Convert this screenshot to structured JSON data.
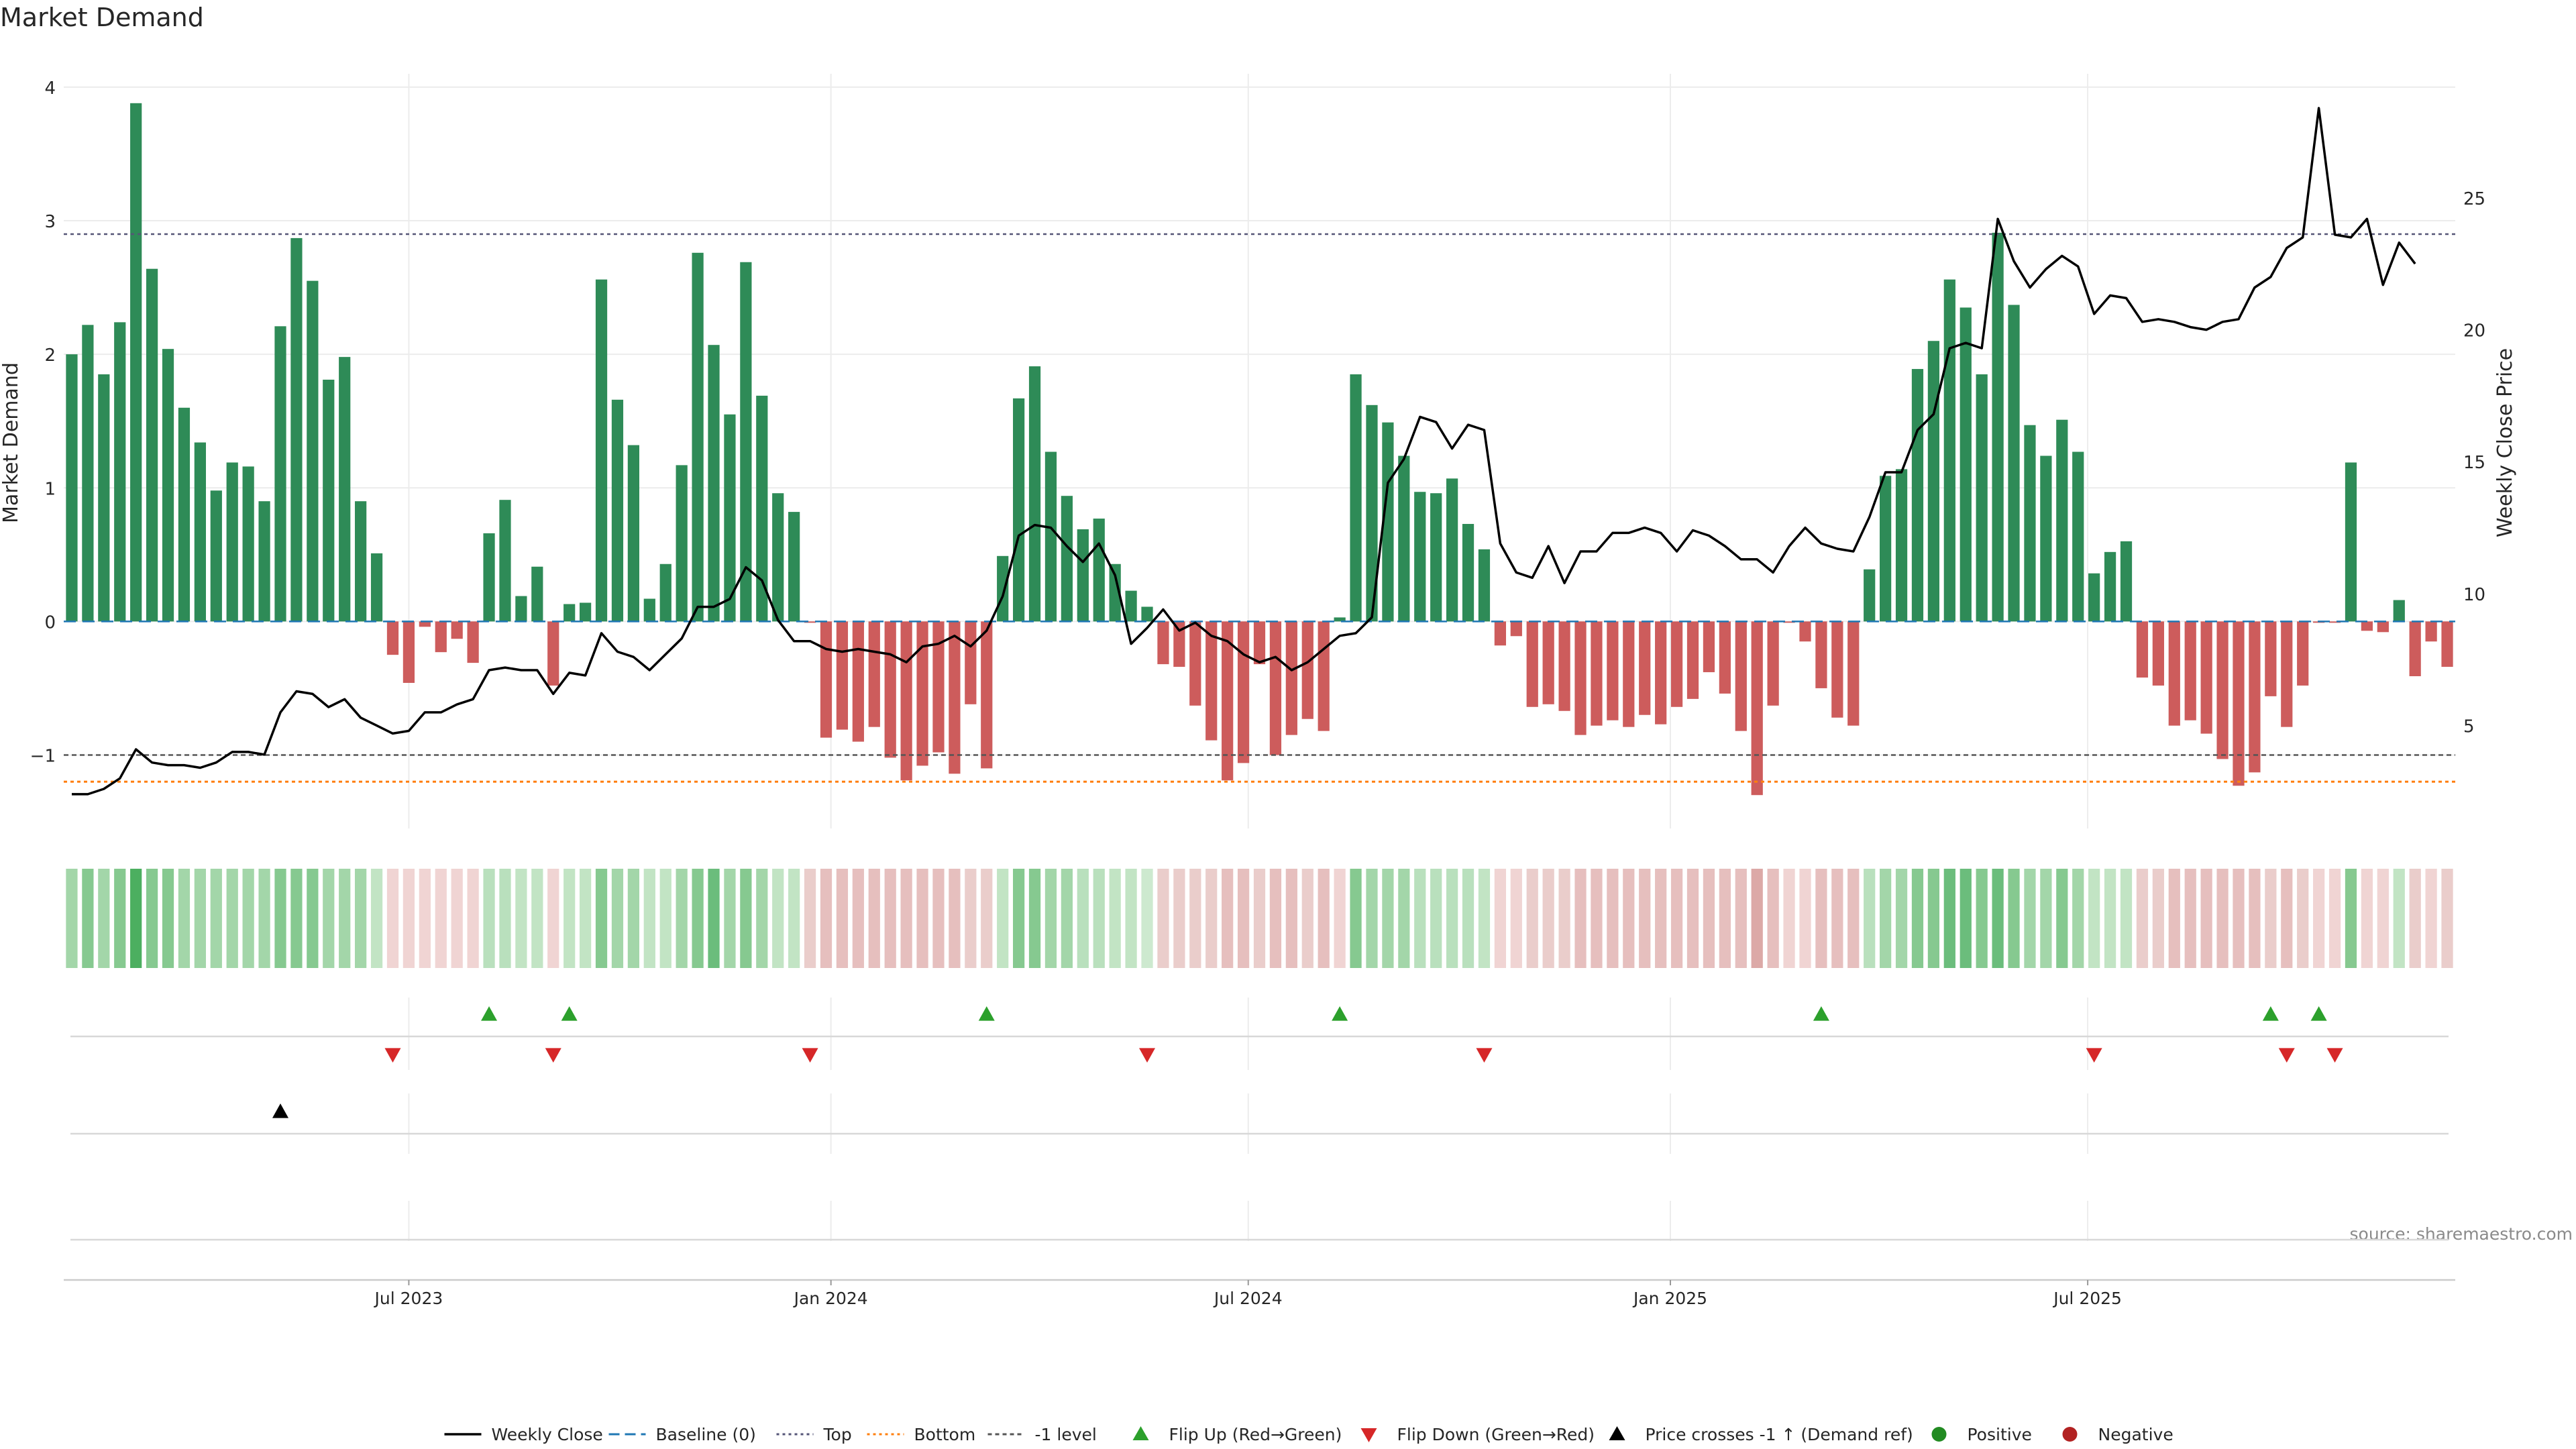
{
  "chart_data": {
    "type": "bar",
    "title": "Market Demand",
    "ylabel_left": "Market Demand",
    "ylabel_right": "Weekly Close Price",
    "ylim_left": [
      -1.55,
      4.1
    ],
    "ylim_right": [
      1.1,
      29.7
    ],
    "left_ticks": [
      -1,
      0,
      1,
      2,
      3,
      4
    ],
    "left_tick_labels": [
      "−1",
      "0",
      "1",
      "2",
      "3",
      "4"
    ],
    "right_ticks": [
      5,
      10,
      15,
      20,
      25
    ],
    "right_tick_labels": [
      "5",
      "10",
      "15",
      "20",
      "25"
    ],
    "x_tick_labels": [
      "Jul 2023",
      "Jan 2024",
      "Jul 2024",
      "Jan 2025",
      "Jul 2025"
    ],
    "x_tick_weeks": [
      21.5,
      47.8,
      73.8,
      100.1,
      126.1
    ],
    "levels": {
      "top": 2.9,
      "bottom": -1.2,
      "minus_one": -1
    },
    "grid": true,
    "legend_placement": "bottom-center",
    "source_note": "source: sharemaestro.com",
    "colors": {
      "positive_bar": "#2e8b57",
      "negative_bar": "#cd5c5c",
      "close_line": "#000000",
      "baseline": "#1f77b4",
      "top": "#555577",
      "bottom": "#ff7f0e",
      "minus_one": "#555555",
      "flip_up": "#2ca02c",
      "flip_down": "#d62728",
      "price_cross": "#000000",
      "positive_dot": "#228b22",
      "negative_dot": "#b22222"
    },
    "demand": [
      2.0,
      2.22,
      1.85,
      2.24,
      3.88,
      2.64,
      2.04,
      1.6,
      1.34,
      0.98,
      1.19,
      1.16,
      0.9,
      2.21,
      2.87,
      2.55,
      1.81,
      1.98,
      0.9,
      0.51,
      -0.25,
      -0.46,
      -0.04,
      -0.23,
      -0.13,
      -0.31,
      0.66,
      0.91,
      0.19,
      0.41,
      -0.48,
      0.13,
      0.14,
      2.56,
      1.66,
      1.32,
      0.17,
      0.43,
      1.17,
      2.76,
      2.07,
      1.55,
      2.69,
      1.69,
      0.96,
      0.82,
      -0.01,
      -0.87,
      -0.81,
      -0.9,
      -0.79,
      -1.02,
      -1.19,
      -1.08,
      -0.98,
      -1.14,
      -0.62,
      -1.1,
      0.49,
      1.67,
      1.91,
      1.27,
      0.94,
      0.69,
      0.77,
      0.43,
      0.23,
      0.11,
      -0.32,
      -0.34,
      -0.63,
      -0.89,
      -1.19,
      -1.06,
      -0.32,
      -1.0,
      -0.85,
      -0.73,
      -0.82,
      0.03,
      1.85,
      1.62,
      1.49,
      1.24,
      0.97,
      0.96,
      1.07,
      0.73,
      0.54,
      -0.18,
      -0.11,
      -0.64,
      -0.62,
      -0.67,
      -0.85,
      -0.78,
      -0.74,
      -0.79,
      -0.7,
      -0.77,
      -0.64,
      -0.58,
      -0.38,
      -0.54,
      -0.82,
      -1.3,
      -0.63,
      -0.01,
      -0.15,
      -0.5,
      -0.72,
      -0.78,
      0.39,
      1.09,
      1.14,
      1.89,
      2.1,
      2.56,
      2.35,
      1.85,
      2.91,
      2.37,
      1.47,
      1.24,
      1.51,
      1.27,
      0.36,
      0.52,
      0.6,
      -0.42,
      -0.48,
      -0.78,
      -0.74,
      -0.84,
      -1.03,
      -1.23,
      -1.13,
      -0.56,
      -0.79,
      -0.48,
      -0.01,
      -0.01,
      1.19,
      -0.07,
      -0.08,
      0.16,
      -0.41,
      -0.15,
      -0.34
    ],
    "close": [
      2.4,
      2.4,
      2.6,
      3.0,
      4.1,
      3.6,
      3.5,
      3.5,
      3.4,
      3.6,
      4.0,
      4.0,
      3.9,
      5.5,
      6.3,
      6.2,
      5.7,
      6.0,
      5.3,
      5.0,
      4.7,
      4.8,
      5.5,
      5.5,
      5.8,
      6.0,
      7.1,
      7.2,
      7.1,
      7.1,
      6.2,
      7.0,
      6.9,
      8.5,
      7.8,
      7.6,
      7.1,
      7.7,
      8.3,
      9.5,
      9.5,
      9.8,
      11.0,
      10.5,
      9.0,
      8.2,
      8.2,
      7.9,
      7.8,
      7.9,
      7.8,
      7.7,
      7.4,
      8.0,
      8.1,
      8.4,
      8.0,
      8.6,
      9.9,
      12.2,
      12.6,
      12.5,
      11.8,
      11.2,
      11.9,
      10.7,
      8.1,
      8.7,
      9.4,
      8.6,
      8.9,
      8.4,
      8.2,
      7.7,
      7.4,
      7.6,
      7.1,
      7.4,
      7.9,
      8.4,
      8.5,
      9.1,
      14.2,
      15.1,
      16.7,
      16.5,
      15.5,
      16.4,
      16.2,
      11.9,
      10.8,
      10.6,
      11.8,
      10.4,
      11.6,
      11.6,
      12.3,
      12.3,
      12.5,
      12.3,
      11.6,
      12.4,
      12.2,
      11.8,
      11.3,
      11.3,
      10.8,
      11.8,
      12.5,
      11.9,
      11.7,
      11.6,
      12.9,
      14.6,
      14.6,
      16.2,
      16.8,
      19.3,
      19.5,
      19.3,
      24.2,
      22.6,
      21.6,
      22.3,
      22.8,
      22.4,
      20.6,
      21.3,
      21.2,
      20.3,
      20.4,
      20.3,
      20.1,
      20.0,
      20.3,
      20.4,
      21.6,
      22.0,
      23.1,
      23.5,
      28.4,
      23.6,
      23.5,
      24.2,
      21.7,
      23.3,
      22.5
    ],
    "heat_colors": [
      "#a3d6a9",
      "#86c990",
      "#a3d6a9",
      "#86c990",
      "#4caf60",
      "#86c990",
      "#86c990",
      "#a3d6a9",
      "#a3d6a9",
      "#a3d6a9",
      "#a3d6a9",
      "#a3d6a9",
      "#a3d6a9",
      "#86c990",
      "#86c990",
      "#86c990",
      "#a3d6a9",
      "#a3d6a9",
      "#a3d6a9",
      "#c2e4c4",
      "#f0d4d3",
      "#f0d4d3",
      "#f0d4d3",
      "#f0d4d3",
      "#f0d4d3",
      "#f0d4d3",
      "#b9e0bd",
      "#b9e0bd",
      "#c2e4c4",
      "#c2e4c4",
      "#f0d4d3",
      "#c2e4c4",
      "#c2e4c4",
      "#86c990",
      "#a3d6a9",
      "#a3d6a9",
      "#c2e4c4",
      "#c2e4c4",
      "#a3d6a9",
      "#86c990",
      "#6bbd7c",
      "#a3d6a9",
      "#86c990",
      "#a3d6a9",
      "#c2e4c4",
      "#c2e4c4",
      "#eacdcb",
      "#e6bfbe",
      "#e6bfbe",
      "#e6bfbe",
      "#e6bfbe",
      "#e6bfbe",
      "#e6bfbe",
      "#e6bfbe",
      "#e6bfbe",
      "#e6bfbe",
      "#eacdcb",
      "#eacdcb",
      "#c2e4c4",
      "#86c990",
      "#86c990",
      "#a3d6a9",
      "#a3d6a9",
      "#b9e0bd",
      "#b9e0bd",
      "#c2e4c4",
      "#c2e4c4",
      "#cde9cf",
      "#eacdcb",
      "#eacdcb",
      "#eacdcb",
      "#eacdcb",
      "#e6bfbe",
      "#e6bfbe",
      "#eacdcb",
      "#e6bfbe",
      "#e6bfbe",
      "#eacdcb",
      "#e6bfbe",
      "#f0d4d3",
      "#86c990",
      "#a3d6a9",
      "#a3d6a9",
      "#a3d6a9",
      "#b9e0bd",
      "#b9e0bd",
      "#b9e0bd",
      "#b9e0bd",
      "#c2e4c4",
      "#f0d4d3",
      "#f0d4d3",
      "#eacdcb",
      "#eacdcb",
      "#eacdcb",
      "#e6bfbe",
      "#e6bfbe",
      "#e6bfbe",
      "#e6bfbe",
      "#e6bfbe",
      "#e6bfbe",
      "#e6bfbe",
      "#e6bfbe",
      "#e6bfbe",
      "#e6bfbe",
      "#e6bfbe",
      "#dca9a7",
      "#e6bfbe",
      "#f0d4d3",
      "#f0d4d3",
      "#e6bfbe",
      "#e6bfbe",
      "#e6bfbe",
      "#b9e0bd",
      "#a3d6a9",
      "#a3d6a9",
      "#86c990",
      "#86c990",
      "#6bbd7c",
      "#6bbd7c",
      "#86c990",
      "#6bbd7c",
      "#86c990",
      "#a3d6a9",
      "#a3d6a9",
      "#86c990",
      "#a3d6a9",
      "#c2e4c4",
      "#c2e4c4",
      "#c2e4c4",
      "#eacdcb",
      "#eacdcb",
      "#e6bfbe",
      "#e6bfbe",
      "#e6bfbe",
      "#e6bfbe",
      "#e6bfbe",
      "#e6bfbe",
      "#eacdcb",
      "#e6bfbe",
      "#eacdcb",
      "#f0d4d3",
      "#f0d4d3",
      "#86c990",
      "#f0d4d3",
      "#f0d4d3",
      "#c2e4c4",
      "#eacdcb",
      "#f0d4d3",
      "#eacdcb"
    ],
    "flip_up_weeks": [
      26,
      31,
      57,
      79,
      109,
      137,
      140
    ],
    "flip_down_weeks": [
      20,
      30,
      46,
      67,
      88,
      126,
      138,
      141
    ],
    "price_cross_weeks": [
      13
    ],
    "legend": [
      {
        "label": "Weekly Close",
        "kind": "line"
      },
      {
        "label": "Baseline (0)",
        "kind": "dash-blue"
      },
      {
        "label": "Top",
        "kind": "dot-slate"
      },
      {
        "label": "Bottom",
        "kind": "dot-orange"
      },
      {
        "label": "-1 level",
        "kind": "dash-gray"
      },
      {
        "label": "Flip Up (Red→Green)",
        "kind": "tri-up-green"
      },
      {
        "label": "Flip Down (Green→Red)",
        "kind": "tri-down-red"
      },
      {
        "label": "Price crosses -1 ↑ (Demand ref)",
        "kind": "tri-up-black"
      },
      {
        "label": "Positive",
        "kind": "dot-green"
      },
      {
        "label": "Negative",
        "kind": "dot-red"
      }
    ]
  }
}
